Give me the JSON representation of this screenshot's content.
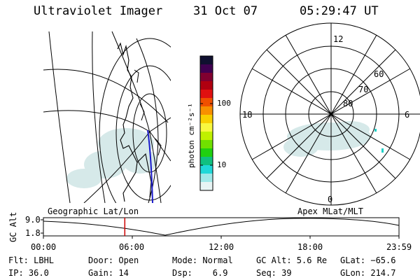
{
  "header": {
    "instrument": "Ultraviolet Imager",
    "date": "31 Oct 07",
    "time": "05:29:47 UT"
  },
  "colorbar": {
    "label": "photon cm⁻²s⁻¹",
    "ticks": [
      {
        "value": 100,
        "label": "100"
      },
      {
        "value": 10,
        "label": "10"
      }
    ],
    "colors": [
      "#101030",
      "#400050",
      "#800030",
      "#b00010",
      "#e01010",
      "#f05000",
      "#f89000",
      "#f8d000",
      "#f8f840",
      "#c0f000",
      "#70e000",
      "#20d010",
      "#10c080",
      "#20d8d8",
      "#a0e8e8",
      "#e8f4f4"
    ]
  },
  "left_map": {
    "caption": "Geographic Lat/Lon"
  },
  "right_map": {
    "caption": "Apex MLat/MLT",
    "mlt_labels": {
      "top": "12",
      "left": "18",
      "right": "6",
      "bottom": "0"
    },
    "lat_labels": [
      "60",
      "70",
      "80"
    ]
  },
  "timeline": {
    "y_axis_label": "GC Alt",
    "y_ticks": [
      "9.0",
      "1.8"
    ],
    "x_ticks": [
      "00:00",
      "06:00",
      "12:00",
      "18:00",
      "23:59"
    ],
    "current_time_fraction": 0.229,
    "marker_color": "#cc0000"
  },
  "status": {
    "flt": "Flt: LBHL",
    "ip": "IP: 36.0",
    "door": "Door: Open",
    "gain": "Gain: 14",
    "mode": "Mode: Normal",
    "dsp": "Dsp:    6.9",
    "gc_alt": "GC Alt: 5.6 Re",
    "seq": "Seq: 39",
    "glat": "GLat: −65.6",
    "glon": "GLon: 214.7"
  }
}
